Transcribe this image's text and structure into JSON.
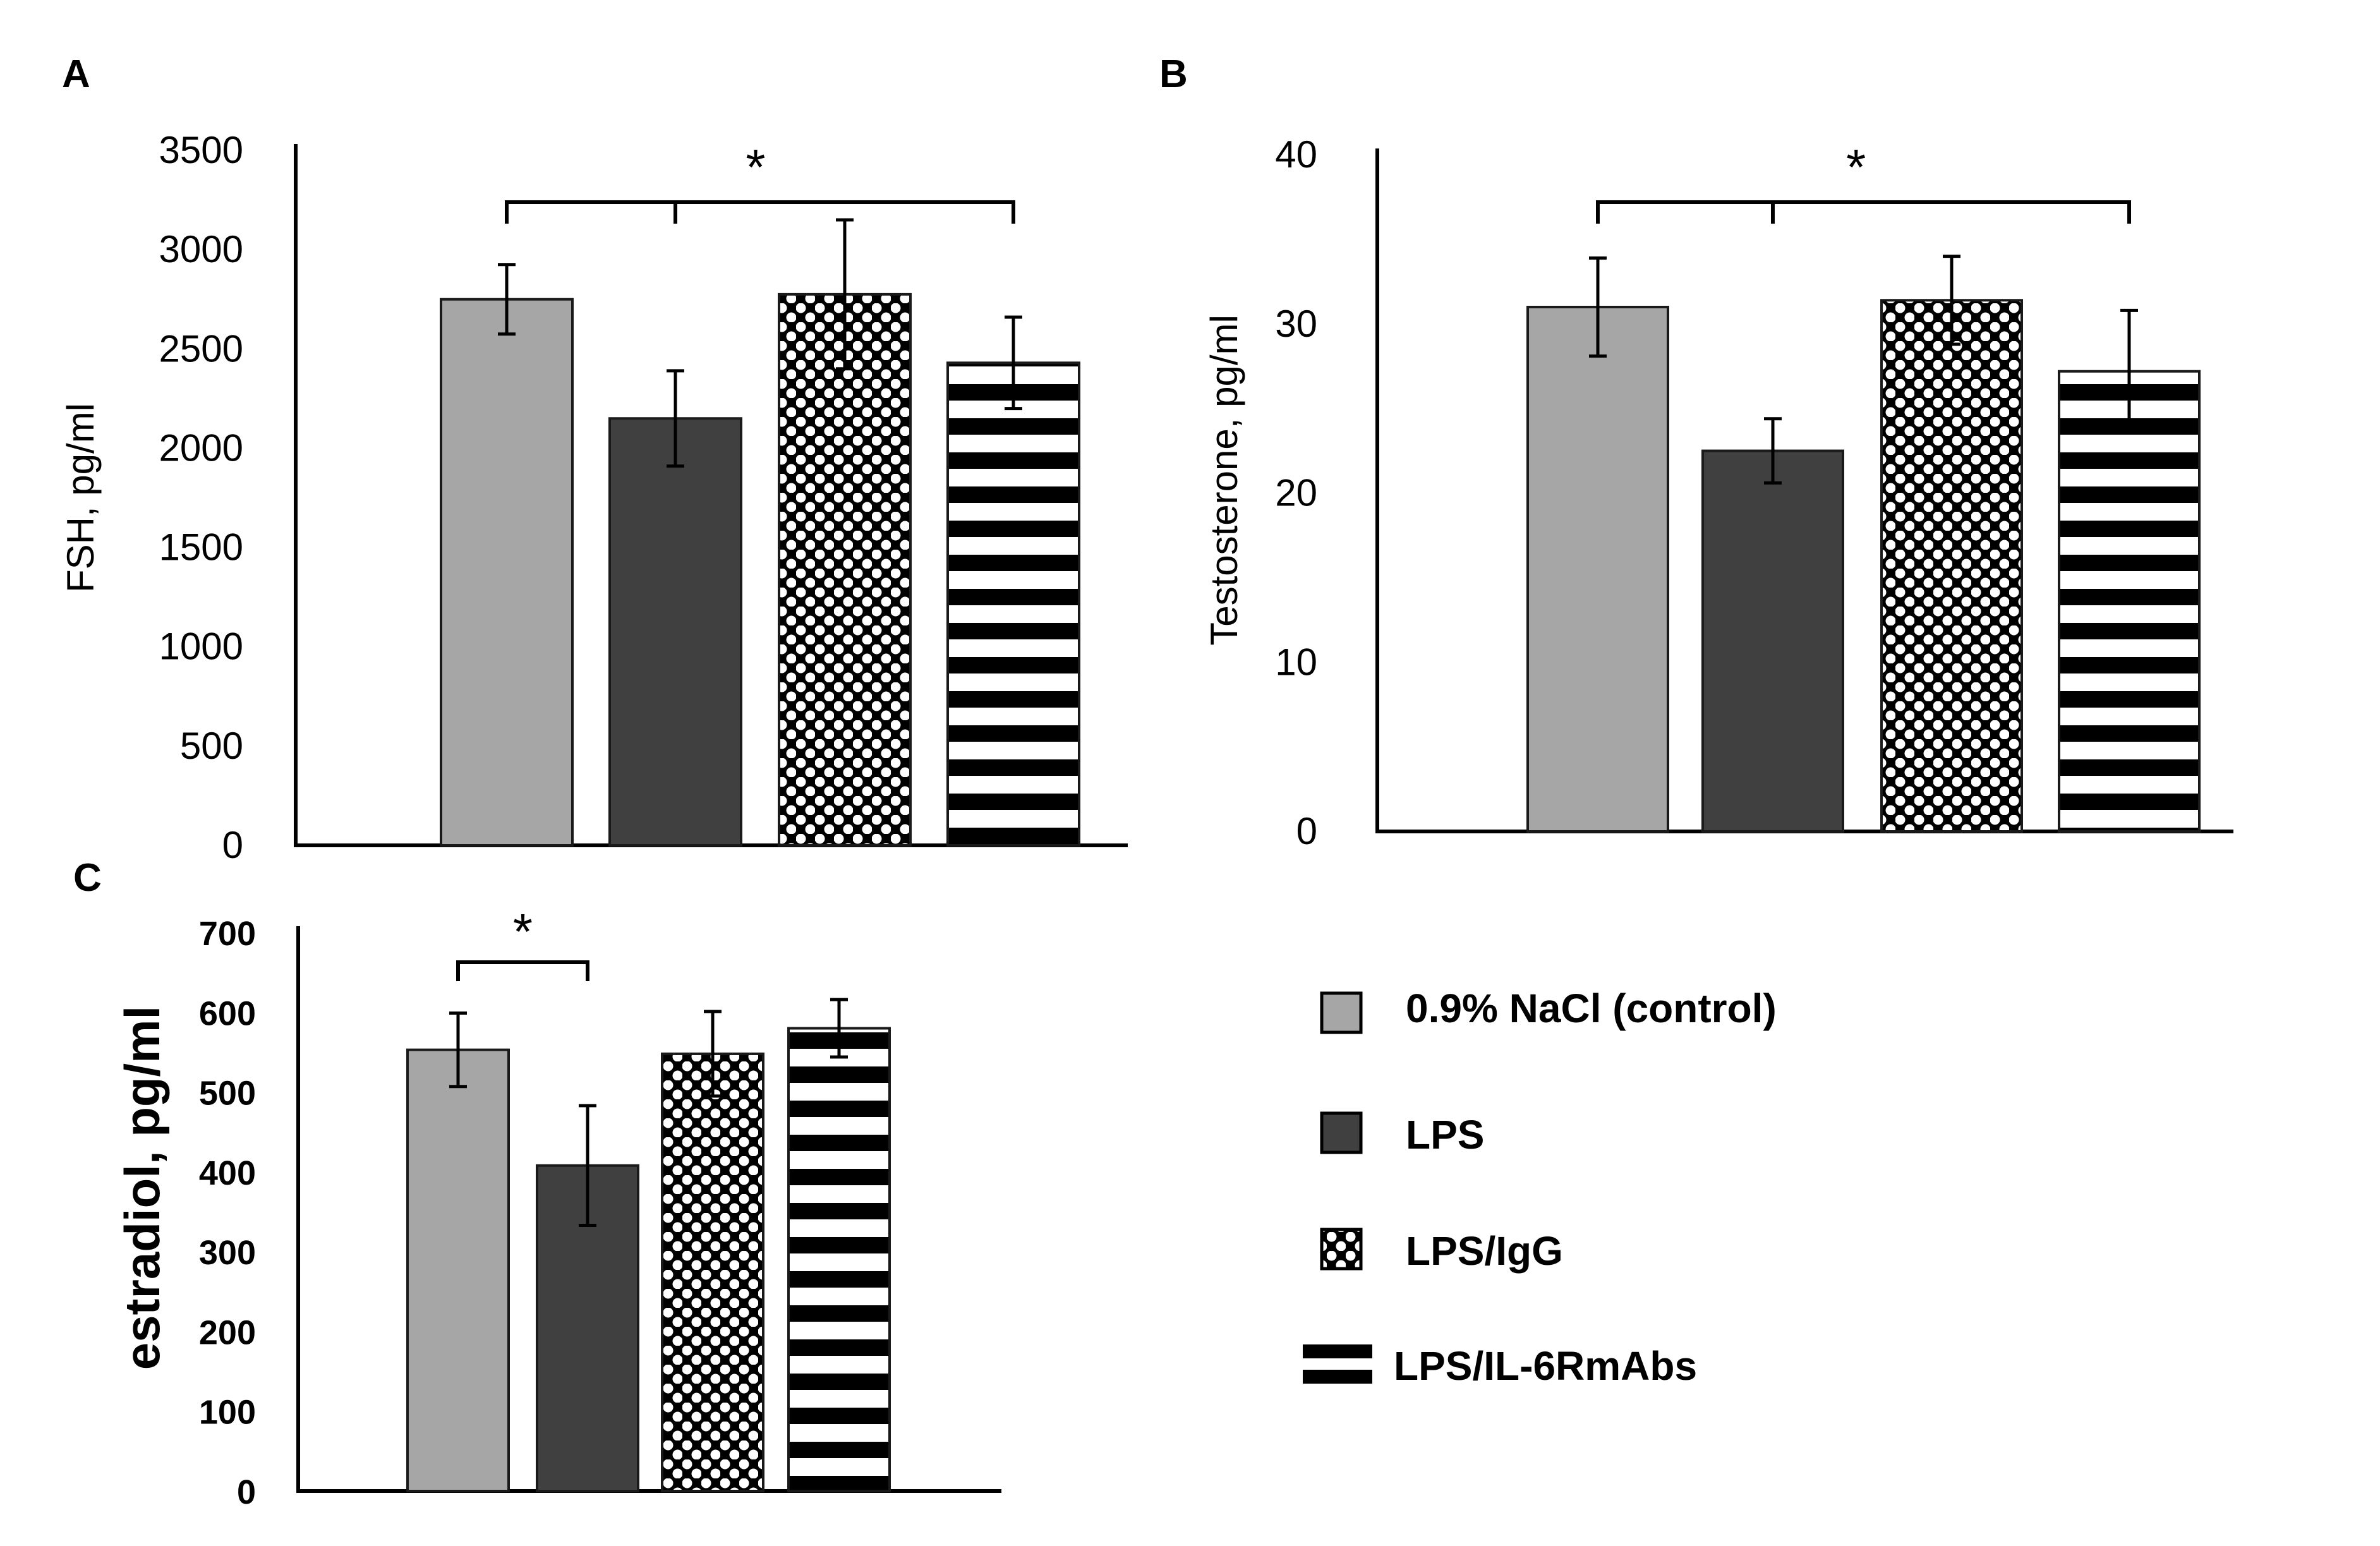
{
  "colors": {
    "control": "#a6a6a6",
    "lps": "#404040",
    "pattern_ink": "#000000",
    "axis": "#000000",
    "background": "#ffffff"
  },
  "legend": {
    "items": [
      {
        "label": "0.9% NaCl (control)",
        "pattern": "solid-light-gray"
      },
      {
        "label": "LPS",
        "pattern": "solid-dark-gray"
      },
      {
        "label": "LPS/IgG",
        "pattern": "checker-dots"
      },
      {
        "label": "LPS/IL-6RmAbs",
        "pattern": "horizontal-stripes"
      }
    ]
  },
  "chart_data": [
    {
      "panel": "A",
      "type": "bar",
      "ylabel": "FSH, pg/ml",
      "ylim": [
        0,
        3500
      ],
      "yticks": [
        "0",
        "500",
        "1000",
        "1500",
        "2000",
        "2500",
        "3000",
        "3500"
      ],
      "categories": [
        "0.9% NaCl (control)",
        "LPS",
        "LPS/IgG",
        "LPS/IL-6RmAbs"
      ],
      "values": [
        2750,
        2150,
        2775,
        2430
      ],
      "errors": [
        175,
        240,
        375,
        230
      ],
      "significance": {
        "label": "*",
        "type": "bracket",
        "from": 1,
        "to": [
          0,
          3
        ]
      },
      "grid": false
    },
    {
      "panel": "B",
      "type": "bar",
      "ylabel": "Testosterone, pg/ml",
      "ylim": [
        0,
        40
      ],
      "yticks": [
        "0",
        "10",
        "20",
        "30",
        "40"
      ],
      "categories": [
        "0.9% NaCl (control)",
        "LPS",
        "LPS/IgG",
        "LPS/IL-6RmAbs"
      ],
      "values": [
        31,
        22.5,
        31.4,
        27.2
      ],
      "errors": [
        2.9,
        1.9,
        2.6,
        3.6
      ],
      "significance": {
        "label": "*",
        "type": "bracket",
        "from": 1,
        "to": [
          0,
          3
        ]
      },
      "grid": false
    },
    {
      "panel": "C",
      "type": "bar",
      "ylabel": "estradiol, pg/ml",
      "ylim": [
        0,
        700
      ],
      "yticks": [
        "0",
        "100",
        "200",
        "300",
        "400",
        "500",
        "600",
        "700"
      ],
      "categories": [
        "0.9% NaCl (control)",
        "LPS",
        "LPS/IgG",
        "LPS/IL-6RmAbs"
      ],
      "values": [
        553,
        408,
        548,
        580
      ],
      "errors": [
        46,
        75,
        53,
        36
      ],
      "significance": {
        "label": "*",
        "type": "pair",
        "pair": [
          0,
          1
        ]
      },
      "grid": false
    }
  ]
}
